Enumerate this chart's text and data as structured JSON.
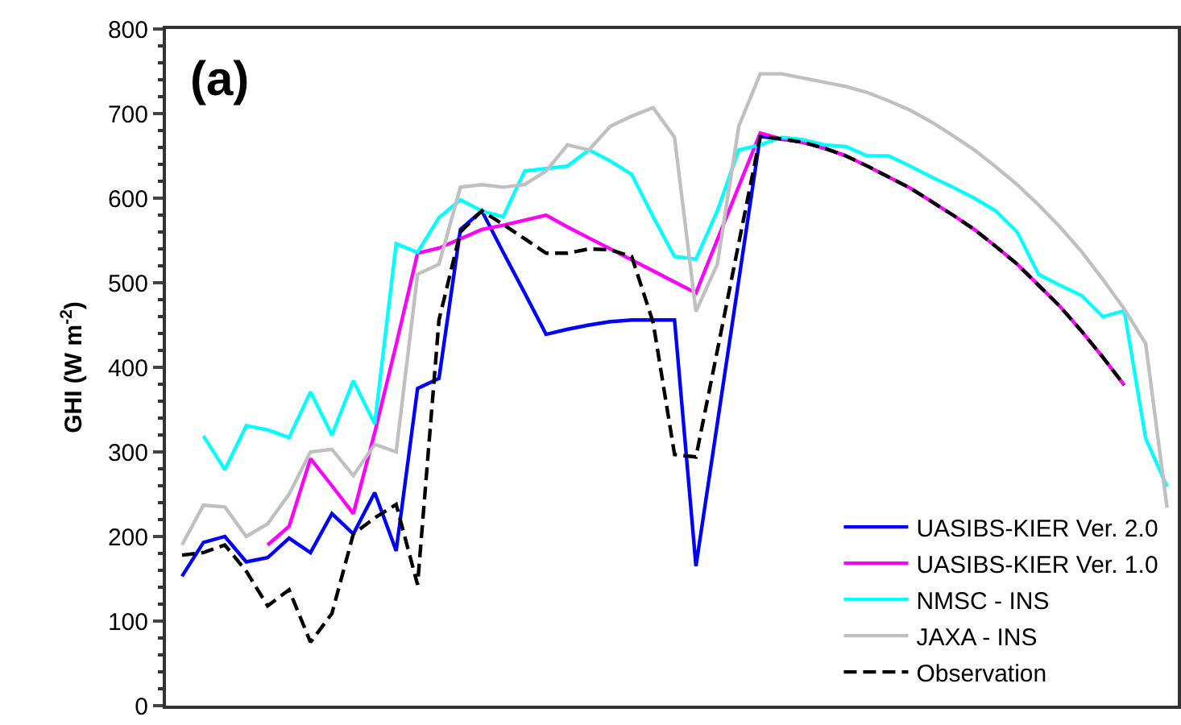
{
  "chart_data": {
    "type": "line",
    "ylabel": "GHI (W m$^{-2}$)",
    "annotations": [
      "(a)"
    ],
    "categories": [
      null,
      null,
      null,
      null,
      null,
      null,
      null,
      null,
      null,
      null,
      null,
      null,
      null,
      null,
      null,
      null,
      null,
      null,
      null,
      null,
      null,
      null,
      null,
      null,
      null,
      null,
      null,
      null,
      null,
      null,
      null,
      null,
      null,
      null,
      null,
      null,
      null,
      null,
      null,
      null,
      null,
      null,
      null,
      null,
      null,
      null,
      null
    ],
    "ylim": [
      0,
      800
    ],
    "yticks": [
      0,
      100,
      200,
      300,
      400,
      500,
      600,
      700,
      800
    ],
    "legend": "bottom right",
    "marker": "none",
    "series": [
      {
        "name": "UASIBS-KIER Ver. 2.0",
        "color": "#0000ff",
        "line_style": "solid",
        "values": [
          153,
          193,
          200,
          170,
          175,
          198,
          181,
          227,
          203,
          252,
          183,
          375,
          387,
          563,
          585,
          536,
          488,
          439,
          445,
          450,
          454,
          456,
          456,
          456,
          165,
          334,
          503,
          673,
          670,
          666,
          659,
          650,
          null,
          null,
          null,
          null,
          null,
          null,
          null,
          null,
          null,
          null,
          null,
          null,
          null,
          null,
          null
        ]
      },
      {
        "name": "UASIBS-KIER Ver. 1.0",
        "color": "#ff00ff",
        "line_style": "solid",
        "values": [
          null,
          null,
          null,
          null,
          190,
          212,
          292,
          260,
          227,
          323,
          427,
          535,
          541,
          552,
          563,
          568,
          574,
          580,
          566,
          553,
          540,
          527,
          514,
          501,
          488,
          551,
          614,
          677,
          670,
          666,
          659,
          650,
          638,
          625,
          612,
          596,
          580,
          563,
          543,
          522,
          497,
          472,
          443,
          412,
          379,
          null,
          null
        ]
      },
      {
        "name": "NMSC - INS",
        "color": "#00ffff",
        "line_style": "solid",
        "values": [
          null,
          319,
          279,
          331,
          326,
          317,
          371,
          320,
          384,
          333,
          546,
          536,
          577,
          598,
          585,
          578,
          632,
          635,
          638,
          657,
          644,
          628,
          578,
          531,
          528,
          585,
          657,
          663,
          672,
          669,
          663,
          661,
          650,
          650,
          638,
          625,
          613,
          600,
          585,
          560,
          510,
          497,
          485,
          460,
          467,
          316,
          259
        ]
      },
      {
        "name": "JAXA - INS",
        "color": "#c0c0c0",
        "line_style": "solid",
        "values": [
          190,
          237,
          235,
          200,
          215,
          250,
          300,
          303,
          272,
          309,
          300,
          510,
          522,
          613,
          616,
          613,
          616,
          632,
          663,
          657,
          685,
          697,
          707,
          672,
          466,
          522,
          685,
          747,
          747,
          742,
          737,
          732,
          725,
          715,
          704,
          690,
          674,
          657,
          637,
          616,
          592,
          566,
          537,
          504,
          469,
          428,
          234
        ]
      },
      {
        "name": "Observation",
        "color": "#000000",
        "line_style": "dashed",
        "values": [
          178,
          181,
          190,
          159,
          118,
          137,
          75,
          109,
          203,
          222,
          238,
          143,
          456,
          560,
          585,
          569,
          552,
          535,
          535,
          540,
          539,
          531,
          453,
          297,
          294,
          420,
          547,
          673,
          670,
          666,
          659,
          650,
          638,
          625,
          612,
          596,
          580,
          563,
          543,
          522,
          497,
          472,
          443,
          412,
          379,
          null,
          null
        ]
      }
    ]
  }
}
